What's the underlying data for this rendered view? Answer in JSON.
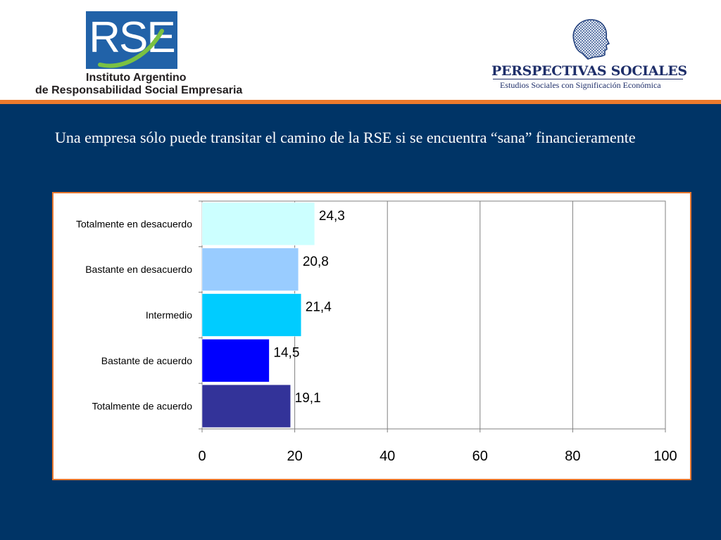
{
  "header": {
    "rse_logo": {
      "letters": "RSE",
      "line1": "Instituto Argentino",
      "line2": "de Responsabilidad Social Empresaria",
      "color": "#2162a8"
    },
    "perspectivas_logo": {
      "icon": "head-wireframe-icon",
      "title": "PERSPECTIVAS SOCIALES",
      "subtitle": "Estudios Sociales con Significación Económica",
      "color": "#1f2f6a"
    }
  },
  "slide": {
    "title": "Una empresa sólo puede transitar el camino de la RSE si se encuentra “sana” financieramente",
    "background": "#003466",
    "accent": "#ec7a2c"
  },
  "chart_data": {
    "type": "bar",
    "orientation": "horizontal",
    "categories": [
      "Totalmente en desacuerdo",
      "Bastante en desacuerdo",
      "Intermedio",
      "Bastante de acuerdo",
      "Totalmente de acuerdo"
    ],
    "values": [
      24.3,
      20.8,
      21.4,
      14.5,
      19.1
    ],
    "value_labels": [
      "24,3",
      "20,8",
      "21,4",
      "14,5",
      "19,1"
    ],
    "colors": [
      "#ccffff",
      "#99ccff",
      "#00ccff",
      "#0000ff",
      "#333399"
    ],
    "xlim": [
      0,
      100
    ],
    "xticks": [
      0,
      20,
      40,
      60,
      80,
      100
    ],
    "title": "",
    "xlabel": "",
    "ylabel": "",
    "grid": true,
    "legend": "none"
  }
}
